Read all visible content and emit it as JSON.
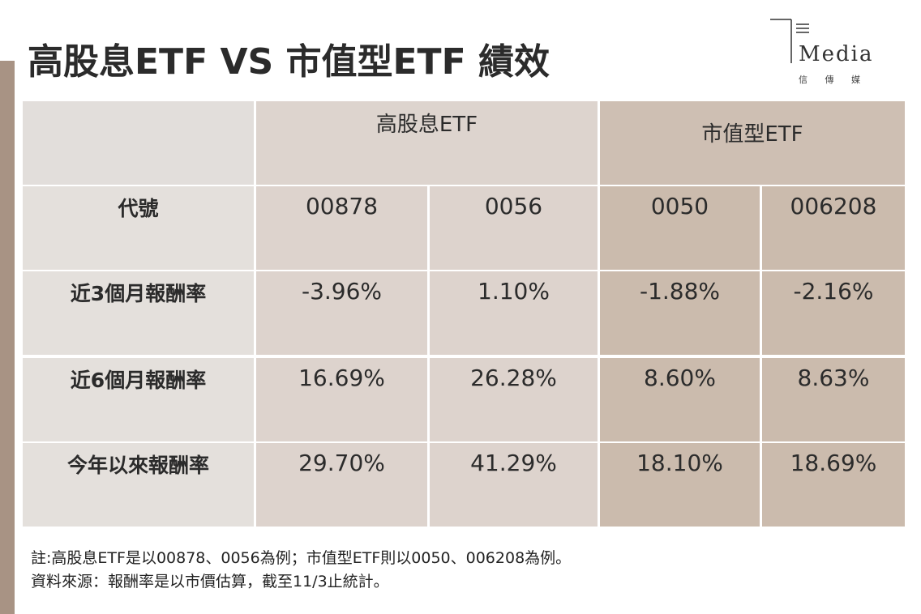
{
  "header": {
    "title": "高股息ETF VS 市值型ETF 績效"
  },
  "logo": {
    "wordmark": "Media",
    "chinese": "信 傳 媒"
  },
  "table": {
    "groups": [
      "高股息ETF",
      "市值型ETF"
    ],
    "rows": [
      [
        "代號",
        "00878",
        "0056",
        "0050",
        "006208"
      ],
      [
        "近3個月報酬率",
        "-3.96%",
        "1.10%",
        "-1.88%",
        "-2.16%"
      ],
      [
        "近6個月報酬率",
        "16.69%",
        "26.28%",
        "8.60%",
        "8.63%"
      ],
      [
        "今年以來報酬率",
        "29.70%",
        "41.29%",
        "18.10%",
        "18.69%"
      ]
    ]
  },
  "notes": [
    "註:高股息ETF是以00878、0056為例；市值型ETF則以0050、006208為例。",
    "資料來源：報酬率是以市價估算，截至11/3止統計。"
  ]
}
